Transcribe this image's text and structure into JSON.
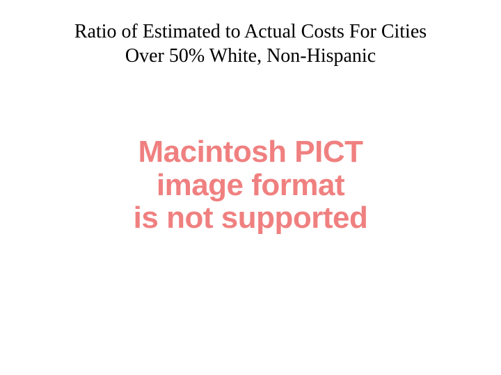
{
  "slide": {
    "title_line1": "Ratio of Estimated to Actual Costs For Cities",
    "title_line2": "Over 50% White, Non-Hispanic",
    "title_fontsize": 28,
    "title_color": "#000000",
    "title_font_family": "Times New Roman",
    "title_font_weight": 400,
    "background_color": "#ffffff"
  },
  "error_message": {
    "line1": "Macintosh PICT",
    "line2": "image format",
    "line3": "is not supported",
    "color": "#f08080",
    "fontsize": 44,
    "font_family": "Arial",
    "font_weight": 900,
    "line_height": 1.08
  }
}
